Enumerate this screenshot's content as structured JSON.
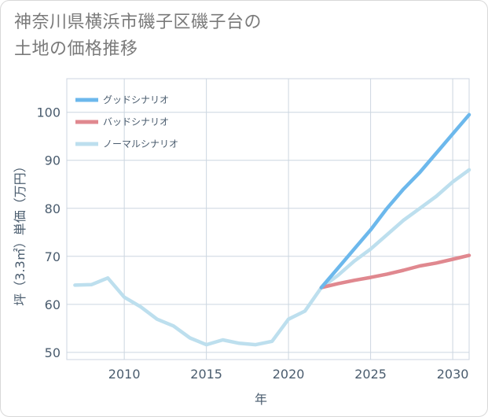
{
  "title": {
    "line1": "神奈川県横浜市磯子区磯子台の",
    "line2": "土地の価格推移"
  },
  "chart_data": {
    "type": "line",
    "title": "神奈川県横浜市磯子区磯子台の土地の価格推移",
    "xlabel": "年",
    "ylabel": "坪（3.3㎡）単価（万円）",
    "xlim": [
      2006.5,
      2031
    ],
    "ylim": [
      48.5,
      107
    ],
    "xticks": [
      2010,
      2015,
      2020,
      2025,
      2030
    ],
    "yticks": [
      50,
      60,
      70,
      80,
      90,
      100
    ],
    "xtick_labels": [
      "2010",
      "2015",
      "2020",
      "2025",
      "2030"
    ],
    "ytick_labels": [
      "50",
      "60",
      "70",
      "80",
      "90",
      "100"
    ],
    "grid": true,
    "legend_position": "top-left",
    "series": [
      {
        "name": "グッドシナリオ",
        "color": "#6cb8ec",
        "x": [
          2022,
          2023,
          2024,
          2025,
          2026,
          2027,
          2028,
          2029,
          2030,
          2031
        ],
        "y": [
          63.5,
          67.5,
          71.5,
          75.5,
          80.0,
          84.0,
          87.5,
          91.5,
          95.5,
          99.5
        ]
      },
      {
        "name": "バッドシナリオ",
        "color": "#e0888f",
        "x": [
          2022,
          2023,
          2024,
          2025,
          2026,
          2027,
          2028,
          2029,
          2030,
          2031
        ],
        "y": [
          63.5,
          64.3,
          65.0,
          65.6,
          66.3,
          67.1,
          68.0,
          68.6,
          69.4,
          70.2
        ]
      },
      {
        "name": "ノーマルシナリオ",
        "color": "#bddfee",
        "x": [
          2007,
          2008,
          2009,
          2010,
          2011,
          2012,
          2013,
          2014,
          2015,
          2016,
          2017,
          2018,
          2019,
          2020,
          2021,
          2022,
          2023,
          2024,
          2025,
          2026,
          2027,
          2028,
          2029,
          2030,
          2031
        ],
        "y": [
          64.0,
          64.1,
          65.5,
          61.5,
          59.5,
          56.9,
          55.5,
          53.0,
          51.6,
          52.6,
          51.9,
          51.6,
          52.3,
          56.9,
          58.6,
          63.5,
          66.0,
          69.0,
          71.5,
          74.5,
          77.5,
          80.0,
          82.5,
          85.5,
          88.0
        ]
      }
    ]
  }
}
